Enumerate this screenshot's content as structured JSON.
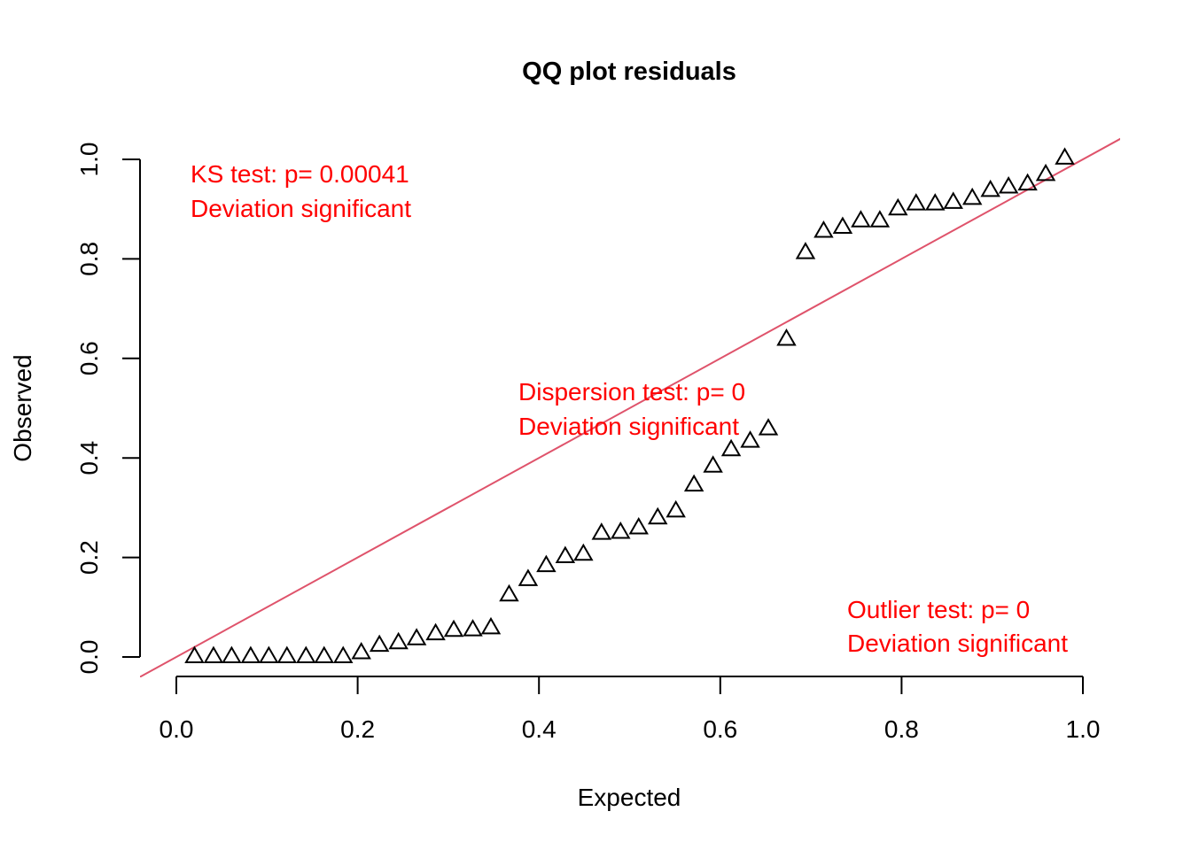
{
  "chart_data": {
    "type": "scatter",
    "title": "QQ plot residuals",
    "xlabel": "Expected",
    "ylabel": "Observed",
    "xlim": [
      0,
      1
    ],
    "ylim": [
      0,
      1
    ],
    "xticks": [
      "0.0",
      "0.2",
      "0.4",
      "0.6",
      "0.8",
      "1.0"
    ],
    "yticks": [
      "0.0",
      "0.2",
      "0.4",
      "0.6",
      "0.8",
      "1.0"
    ],
    "grid": false,
    "marker": "open-triangle",
    "reference_line": {
      "slope": 1,
      "intercept": 0,
      "color": "#df536b"
    },
    "points": {
      "x": [
        0.02,
        0.041,
        0.061,
        0.082,
        0.102,
        0.122,
        0.143,
        0.163,
        0.184,
        0.204,
        0.224,
        0.245,
        0.265,
        0.286,
        0.306,
        0.327,
        0.347,
        0.367,
        0.388,
        0.408,
        0.429,
        0.449,
        0.469,
        0.49,
        0.51,
        0.531,
        0.551,
        0.571,
        0.592,
        0.612,
        0.633,
        0.653,
        0.673,
        0.694,
        0.714,
        0.735,
        0.755,
        0.776,
        0.796,
        0.816,
        0.837,
        0.857,
        0.878,
        0.898,
        0.918,
        0.939,
        0.959,
        0.98
      ],
      "y": [
        0.0,
        0.0,
        0.0,
        0.0,
        0.0,
        0.0,
        0.0,
        0.0,
        0.0,
        0.008,
        0.023,
        0.028,
        0.036,
        0.046,
        0.053,
        0.054,
        0.058,
        0.124,
        0.155,
        0.183,
        0.201,
        0.206,
        0.248,
        0.25,
        0.259,
        0.279,
        0.293,
        0.345,
        0.383,
        0.416,
        0.433,
        0.458,
        0.638,
        0.812,
        0.855,
        0.863,
        0.876,
        0.876,
        0.9,
        0.91,
        0.91,
        0.913,
        0.921,
        0.937,
        0.944,
        0.95,
        0.969,
        1.002
      ]
    },
    "annotations": [
      {
        "lines": [
          "KS test: p= 0.00041",
          "Deviation  significant"
        ],
        "color": "#ff0000",
        "position": "top-left"
      },
      {
        "lines": [
          "Dispersion test: p= 0",
          "Deviation  significant"
        ],
        "color": "#ff0000",
        "position": "center"
      },
      {
        "lines": [
          "Outlier test: p= 0",
          "Deviation  significant"
        ],
        "color": "#ff0000",
        "position": "bottom-right"
      }
    ]
  }
}
